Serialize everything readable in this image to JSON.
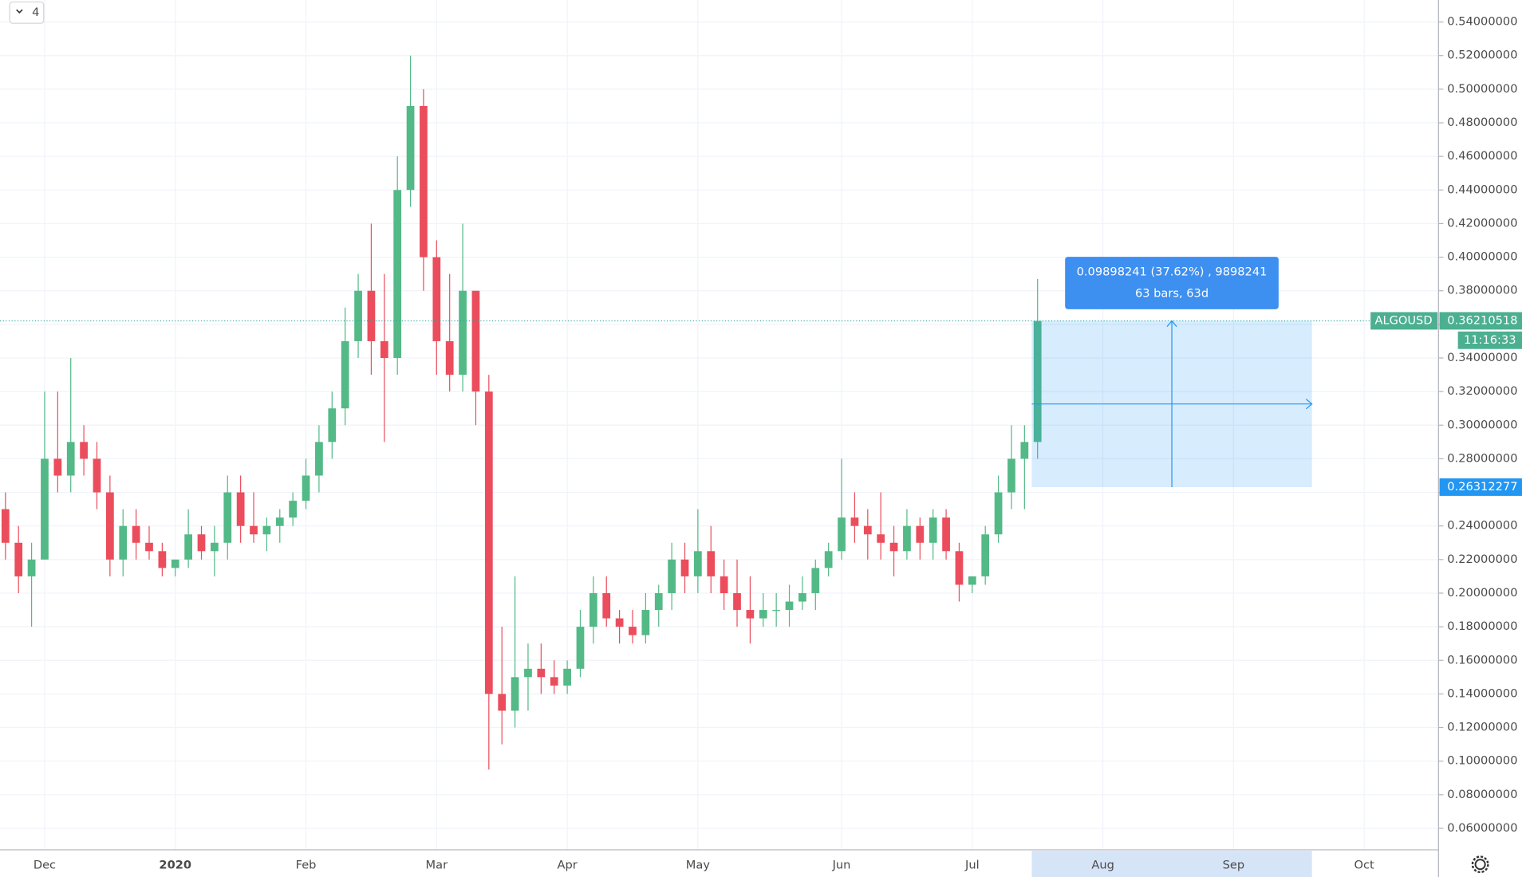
{
  "chart_data": {
    "type": "candlestick",
    "button_label": "4",
    "symbol": "ALGOUSD",
    "countdown": "11:16:33",
    "up_color": "#53b987",
    "down_color": "#eb4d5c",
    "grid": true,
    "categories": [
      null,
      null,
      null,
      "Dec",
      null,
      null,
      null,
      null,
      null,
      null,
      null,
      null,
      null,
      "2020",
      null,
      null,
      null,
      null,
      null,
      null,
      null,
      null,
      null,
      "Feb",
      null,
      null,
      null,
      null,
      null,
      null,
      null,
      null,
      null,
      "Mar",
      null,
      null,
      null,
      null,
      null,
      null,
      null,
      null,
      null,
      "Apr",
      null,
      null,
      null,
      null,
      null,
      null,
      null,
      null,
      null,
      "May",
      null,
      null,
      null,
      null,
      null,
      null,
      null,
      null,
      null,
      null,
      "Jun",
      null,
      null,
      null,
      null,
      null,
      null,
      null,
      null,
      null,
      "Jul",
      null,
      null,
      null,
      null,
      null,
      null,
      null,
      null,
      null,
      "Aug",
      null,
      null,
      null,
      null,
      null,
      null,
      null,
      null,
      null,
      "Sep",
      null,
      null,
      null,
      null,
      null,
      null,
      null,
      null,
      null,
      "Oct",
      null
    ],
    "series": [
      {
        "name": "ALGOUSD",
        "ohlc": [
          [
            0.25,
            0.26,
            0.22,
            0.23
          ],
          [
            0.23,
            0.24,
            0.2,
            0.21
          ],
          [
            0.21,
            0.23,
            0.18,
            0.22
          ],
          [
            0.22,
            0.32,
            0.22,
            0.28
          ],
          [
            0.28,
            0.32,
            0.26,
            0.27
          ],
          [
            0.27,
            0.34,
            0.26,
            0.29
          ],
          [
            0.29,
            0.3,
            0.27,
            0.28
          ],
          [
            0.28,
            0.29,
            0.25,
            0.26
          ],
          [
            0.26,
            0.27,
            0.21,
            0.22
          ],
          [
            0.22,
            0.25,
            0.21,
            0.24
          ],
          [
            0.24,
            0.25,
            0.22,
            0.23
          ],
          [
            0.23,
            0.24,
            0.22,
            0.225
          ],
          [
            0.225,
            0.23,
            0.21,
            0.215
          ],
          [
            0.215,
            0.22,
            0.21,
            0.22
          ],
          [
            0.22,
            0.25,
            0.215,
            0.235
          ],
          [
            0.235,
            0.24,
            0.22,
            0.225
          ],
          [
            0.225,
            0.24,
            0.21,
            0.23
          ],
          [
            0.23,
            0.27,
            0.22,
            0.26
          ],
          [
            0.26,
            0.27,
            0.23,
            0.24
          ],
          [
            0.24,
            0.26,
            0.23,
            0.235
          ],
          [
            0.235,
            0.245,
            0.225,
            0.24
          ],
          [
            0.24,
            0.25,
            0.23,
            0.245
          ],
          [
            0.245,
            0.26,
            0.24,
            0.255
          ],
          [
            0.255,
            0.28,
            0.25,
            0.27
          ],
          [
            0.27,
            0.3,
            0.26,
            0.29
          ],
          [
            0.29,
            0.32,
            0.28,
            0.31
          ],
          [
            0.31,
            0.37,
            0.3,
            0.35
          ],
          [
            0.35,
            0.39,
            0.34,
            0.38
          ],
          [
            0.38,
            0.42,
            0.33,
            0.35
          ],
          [
            0.35,
            0.39,
            0.29,
            0.34
          ],
          [
            0.34,
            0.46,
            0.33,
            0.44
          ],
          [
            0.44,
            0.52,
            0.43,
            0.49
          ],
          [
            0.49,
            0.5,
            0.38,
            0.4
          ],
          [
            0.4,
            0.41,
            0.33,
            0.35
          ],
          [
            0.35,
            0.39,
            0.32,
            0.33
          ],
          [
            0.33,
            0.42,
            0.32,
            0.38
          ],
          [
            0.38,
            0.38,
            0.3,
            0.32
          ],
          [
            0.32,
            0.33,
            0.095,
            0.14
          ],
          [
            0.14,
            0.18,
            0.11,
            0.13
          ],
          [
            0.13,
            0.21,
            0.12,
            0.15
          ],
          [
            0.15,
            0.17,
            0.13,
            0.155
          ],
          [
            0.155,
            0.17,
            0.14,
            0.15
          ],
          [
            0.15,
            0.16,
            0.14,
            0.145
          ],
          [
            0.145,
            0.16,
            0.14,
            0.155
          ],
          [
            0.155,
            0.19,
            0.15,
            0.18
          ],
          [
            0.18,
            0.21,
            0.17,
            0.2
          ],
          [
            0.2,
            0.21,
            0.18,
            0.185
          ],
          [
            0.185,
            0.19,
            0.17,
            0.18
          ],
          [
            0.18,
            0.19,
            0.17,
            0.175
          ],
          [
            0.175,
            0.2,
            0.17,
            0.19
          ],
          [
            0.19,
            0.205,
            0.18,
            0.2
          ],
          [
            0.2,
            0.23,
            0.19,
            0.22
          ],
          [
            0.22,
            0.23,
            0.2,
            0.21
          ],
          [
            0.21,
            0.25,
            0.2,
            0.225
          ],
          [
            0.225,
            0.24,
            0.2,
            0.21
          ],
          [
            0.21,
            0.22,
            0.19,
            0.2
          ],
          [
            0.2,
            0.22,
            0.18,
            0.19
          ],
          [
            0.19,
            0.21,
            0.17,
            0.185
          ],
          [
            0.185,
            0.2,
            0.18,
            0.19
          ],
          [
            0.19,
            0.2,
            0.18,
            0.19
          ],
          [
            0.19,
            0.205,
            0.18,
            0.195
          ],
          [
            0.195,
            0.21,
            0.19,
            0.2
          ],
          [
            0.2,
            0.22,
            0.19,
            0.215
          ],
          [
            0.215,
            0.23,
            0.21,
            0.225
          ],
          [
            0.225,
            0.28,
            0.22,
            0.245
          ],
          [
            0.245,
            0.26,
            0.23,
            0.24
          ],
          [
            0.24,
            0.25,
            0.22,
            0.235
          ],
          [
            0.235,
            0.26,
            0.22,
            0.23
          ],
          [
            0.23,
            0.24,
            0.21,
            0.225
          ],
          [
            0.225,
            0.25,
            0.22,
            0.24
          ],
          [
            0.24,
            0.245,
            0.22,
            0.23
          ],
          [
            0.23,
            0.25,
            0.22,
            0.245
          ],
          [
            0.245,
            0.25,
            0.22,
            0.225
          ],
          [
            0.225,
            0.23,
            0.195,
            0.205
          ],
          [
            0.205,
            0.21,
            0.2,
            0.21
          ],
          [
            0.21,
            0.24,
            0.205,
            0.235
          ],
          [
            0.235,
            0.27,
            0.23,
            0.26
          ],
          [
            0.26,
            0.3,
            0.25,
            0.28
          ],
          [
            0.28,
            0.3,
            0.25,
            0.29
          ],
          [
            0.29,
            0.387,
            0.28,
            0.362
          ],
          null,
          null,
          null,
          null,
          null,
          null,
          null,
          null,
          null,
          null,
          null,
          null,
          null,
          null,
          null,
          null,
          null,
          null,
          null,
          null,
          null,
          null,
          null,
          null,
          null,
          null
        ]
      }
    ],
    "last_price": {
      "value": 0.36210518,
      "label": "0.36210518"
    },
    "measure": {
      "top": {
        "value": 0.36210518,
        "label": "0.36210518"
      },
      "bottom": {
        "value": 0.26312277,
        "label": "0.26312277"
      },
      "label_lines": [
        "0.09898241 (37.62%) , 9898241",
        "63 bars, 63d"
      ]
    },
    "ylim": [
      0.0472,
      0.5531
    ],
    "yticks": [
      {
        "value": 0.06,
        "label": "0.06000000"
      },
      {
        "value": 0.08,
        "label": "0.08000000"
      },
      {
        "value": 0.1,
        "label": "0.10000000"
      },
      {
        "value": 0.12,
        "label": "0.12000000"
      },
      {
        "value": 0.14,
        "label": "0.14000000"
      },
      {
        "value": 0.16,
        "label": "0.16000000"
      },
      {
        "value": 0.18,
        "label": "0.18000000"
      },
      {
        "value": 0.2,
        "label": "0.20000000"
      },
      {
        "value": 0.22,
        "label": "0.22000000"
      },
      {
        "value": 0.24,
        "label": "0.24000000"
      },
      {
        "value": 0.26,
        "label": "0.26000000"
      },
      {
        "value": 0.28,
        "label": "0.28000000"
      },
      {
        "value": 0.3,
        "label": "0.30000000"
      },
      {
        "value": 0.32,
        "label": "0.32000000"
      },
      {
        "value": 0.34,
        "label": "0.34000000"
      },
      {
        "value": 0.36,
        "label": "0.36000000"
      },
      {
        "value": 0.38,
        "label": "0.38000000"
      },
      {
        "value": 0.4,
        "label": "0.40000000"
      },
      {
        "value": 0.42,
        "label": "0.42000000"
      },
      {
        "value": 0.44,
        "label": "0.44000000"
      },
      {
        "value": 0.46,
        "label": "0.46000000"
      },
      {
        "value": 0.48,
        "label": "0.48000000"
      },
      {
        "value": 0.5,
        "label": "0.50000000"
      },
      {
        "value": 0.52,
        "label": "0.52000000"
      },
      {
        "value": 0.54,
        "label": "0.54000000"
      }
    ]
  }
}
